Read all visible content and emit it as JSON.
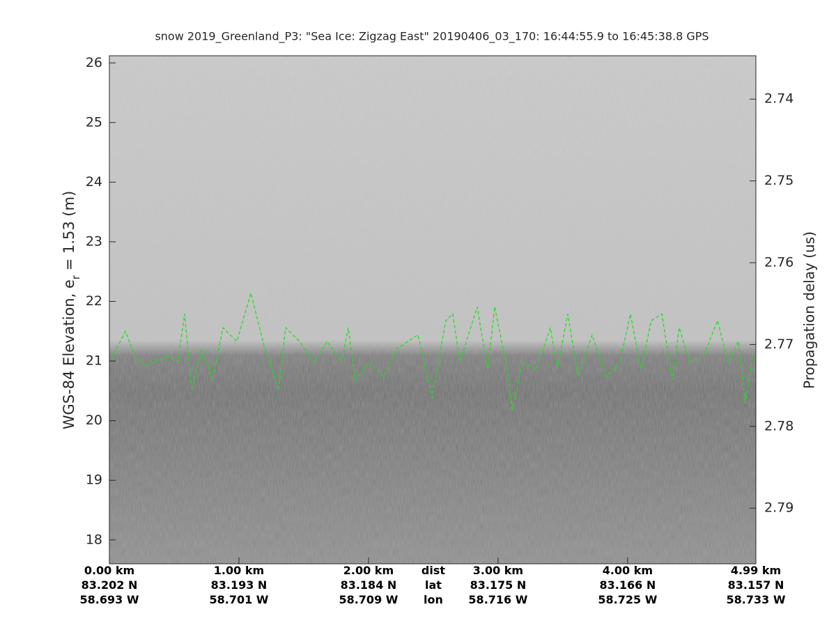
{
  "chart_data": {
    "type": "echogram",
    "title": "snow 2019_Greenland_P3: \"Sea Ice: Zigzag East\"  20190406_03_170: 16:44:55.9 to 16:45:38.8 GPS",
    "ylabel": {
      "text": "WGS-84 Elevation, e",
      "subscript": "r",
      "rest": " = 1.53 (m)"
    },
    "y2label": "Propagation delay (us)",
    "ylim": [
      17.6,
      26.12
    ],
    "yticks": [
      18,
      19,
      20,
      21,
      22,
      23,
      24,
      25,
      26
    ],
    "y2lim": [
      2.7347,
      2.7968
    ],
    "y2_reversed": true,
    "y2ticks": [
      2.74,
      2.75,
      2.76,
      2.77,
      2.78,
      2.79
    ],
    "xlim": [
      0,
      4.99
    ],
    "xticks": [
      {
        "value": 0,
        "label": "0.00 km"
      },
      {
        "value": 1,
        "label": "1.00 km"
      },
      {
        "value": 2,
        "label": "2.00 km"
      },
      {
        "value": 3,
        "label": "3.00 km"
      },
      {
        "value": 4,
        "label": "4.00 km"
      },
      {
        "value": 4.99,
        "label": "4.99 km"
      }
    ],
    "xtick_lat": [
      "83.202 N",
      "83.193 N",
      "83.184 N",
      "83.175 N",
      "83.166 N",
      "83.157 N"
    ],
    "xtick_lon": [
      "58.693 W",
      "58.701 W",
      "58.709 W",
      "58.716 W",
      "58.725 W",
      "58.733 W"
    ],
    "xrow_names": [
      "dist",
      "lat",
      "lon"
    ],
    "surface": {
      "color": "#22dd22",
      "x": [
        0.016,
        0.124,
        0.204,
        0.285,
        0.446,
        0.527,
        0.581,
        0.635,
        0.715,
        0.796,
        0.877,
        0.984,
        1.092,
        1.199,
        1.307,
        1.36,
        1.468,
        1.576,
        1.683,
        1.791,
        1.844,
        1.898,
        2.006,
        2.113,
        2.221,
        2.382,
        2.49,
        2.597,
        2.651,
        2.705,
        2.839,
        2.92,
        2.974,
        3.081,
        3.108,
        3.189,
        3.296,
        3.404,
        3.457,
        3.538,
        3.619,
        3.726,
        3.834,
        3.941,
        4.022,
        4.103,
        4.183,
        4.264,
        4.345,
        4.398,
        4.479,
        4.587,
        4.694,
        4.775,
        4.855,
        4.909,
        4.963
      ],
      "values": [
        21.04,
        21.5,
        21.04,
        20.92,
        21.09,
        20.98,
        21.79,
        20.51,
        21.21,
        20.68,
        21.56,
        21.33,
        22.14,
        21.21,
        20.51,
        21.56,
        21.33,
        20.98,
        21.33,
        20.98,
        21.56,
        20.68,
        20.98,
        20.74,
        21.21,
        21.44,
        20.39,
        21.68,
        21.79,
        20.98,
        21.91,
        20.86,
        21.91,
        20.74,
        20.16,
        20.98,
        20.86,
        21.56,
        20.86,
        21.79,
        20.74,
        21.44,
        20.74,
        20.98,
        21.79,
        20.86,
        21.68,
        21.79,
        20.68,
        21.56,
        20.98,
        21.09,
        21.68,
        20.98,
        21.33,
        20.28,
        21.09
      ]
    }
  }
}
